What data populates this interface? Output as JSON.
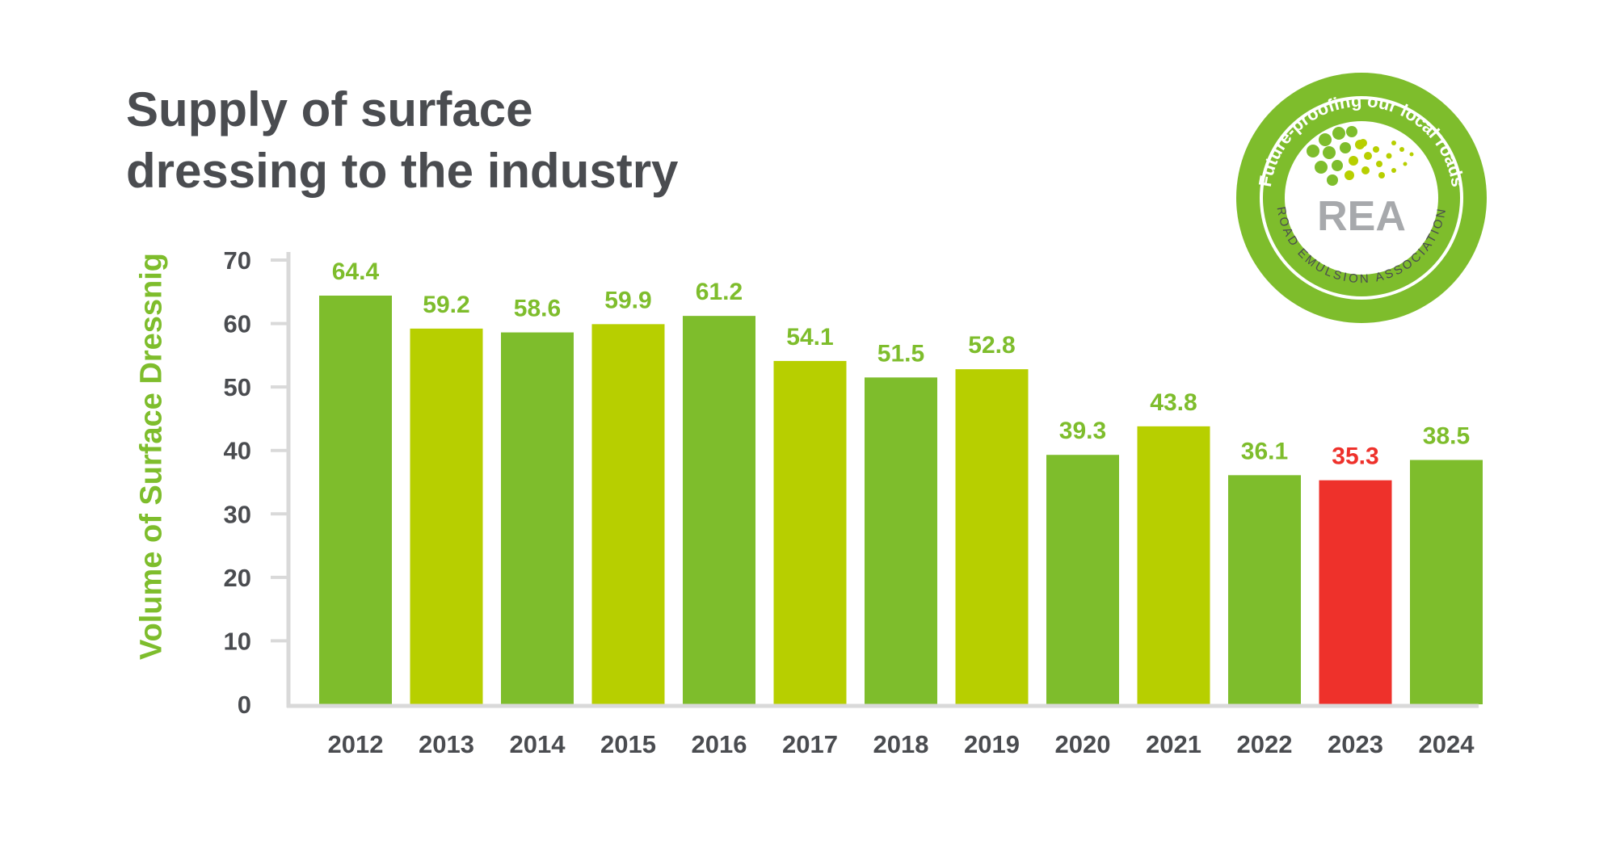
{
  "title_lines": [
    "Supply of surface",
    "dressing to the industry"
  ],
  "colors": {
    "bar_green": "#7ebd2c",
    "bar_lime": "#b7cf00",
    "bar_red": "#ee312b",
    "text_dark": "#4a4c50",
    "axis": "#d9d9d9",
    "badge_green": "#7ebd2c",
    "badge_grey": "#a7a9ac"
  },
  "badge": {
    "top_text": "Future-proofing our local roads",
    "bottom_text": "ROAD EMULSION ASSOCIATION",
    "logo_text": "REA"
  },
  "chart_data": {
    "type": "bar",
    "title": "Supply of surface dressing to the industry",
    "xlabel": "",
    "ylabel": "Volume of Surface Dressnig",
    "ylim": [
      0,
      70
    ],
    "yticks": [
      0,
      10,
      20,
      30,
      40,
      50,
      60,
      70
    ],
    "grid": false,
    "categories": [
      "2012",
      "2013",
      "2014",
      "2015",
      "2016",
      "2017",
      "2018",
      "2019",
      "2020",
      "2021",
      "2022",
      "2023",
      "2024"
    ],
    "values": [
      64.4,
      59.2,
      58.6,
      59.9,
      61.2,
      54.1,
      51.5,
      52.8,
      39.3,
      43.8,
      36.1,
      35.3,
      38.5
    ],
    "labels": [
      "64.4",
      "59.2",
      "58.6",
      "59.9",
      "61.2",
      "54.1",
      "51.5",
      "52.8",
      "39.3",
      "43.8",
      "36.1",
      "35.3",
      "38.5"
    ],
    "bar_colors": [
      "#7ebd2c",
      "#b7cf00",
      "#7ebd2c",
      "#b7cf00",
      "#7ebd2c",
      "#b7cf00",
      "#7ebd2c",
      "#b7cf00",
      "#7ebd2c",
      "#b7cf00",
      "#7ebd2c",
      "#ee312b",
      "#7ebd2c"
    ],
    "label_colors": [
      "#7ebd2c",
      "#7ebd2c",
      "#7ebd2c",
      "#7ebd2c",
      "#7ebd2c",
      "#7ebd2c",
      "#7ebd2c",
      "#7ebd2c",
      "#7ebd2c",
      "#7ebd2c",
      "#7ebd2c",
      "#ee312b",
      "#7ebd2c"
    ]
  }
}
